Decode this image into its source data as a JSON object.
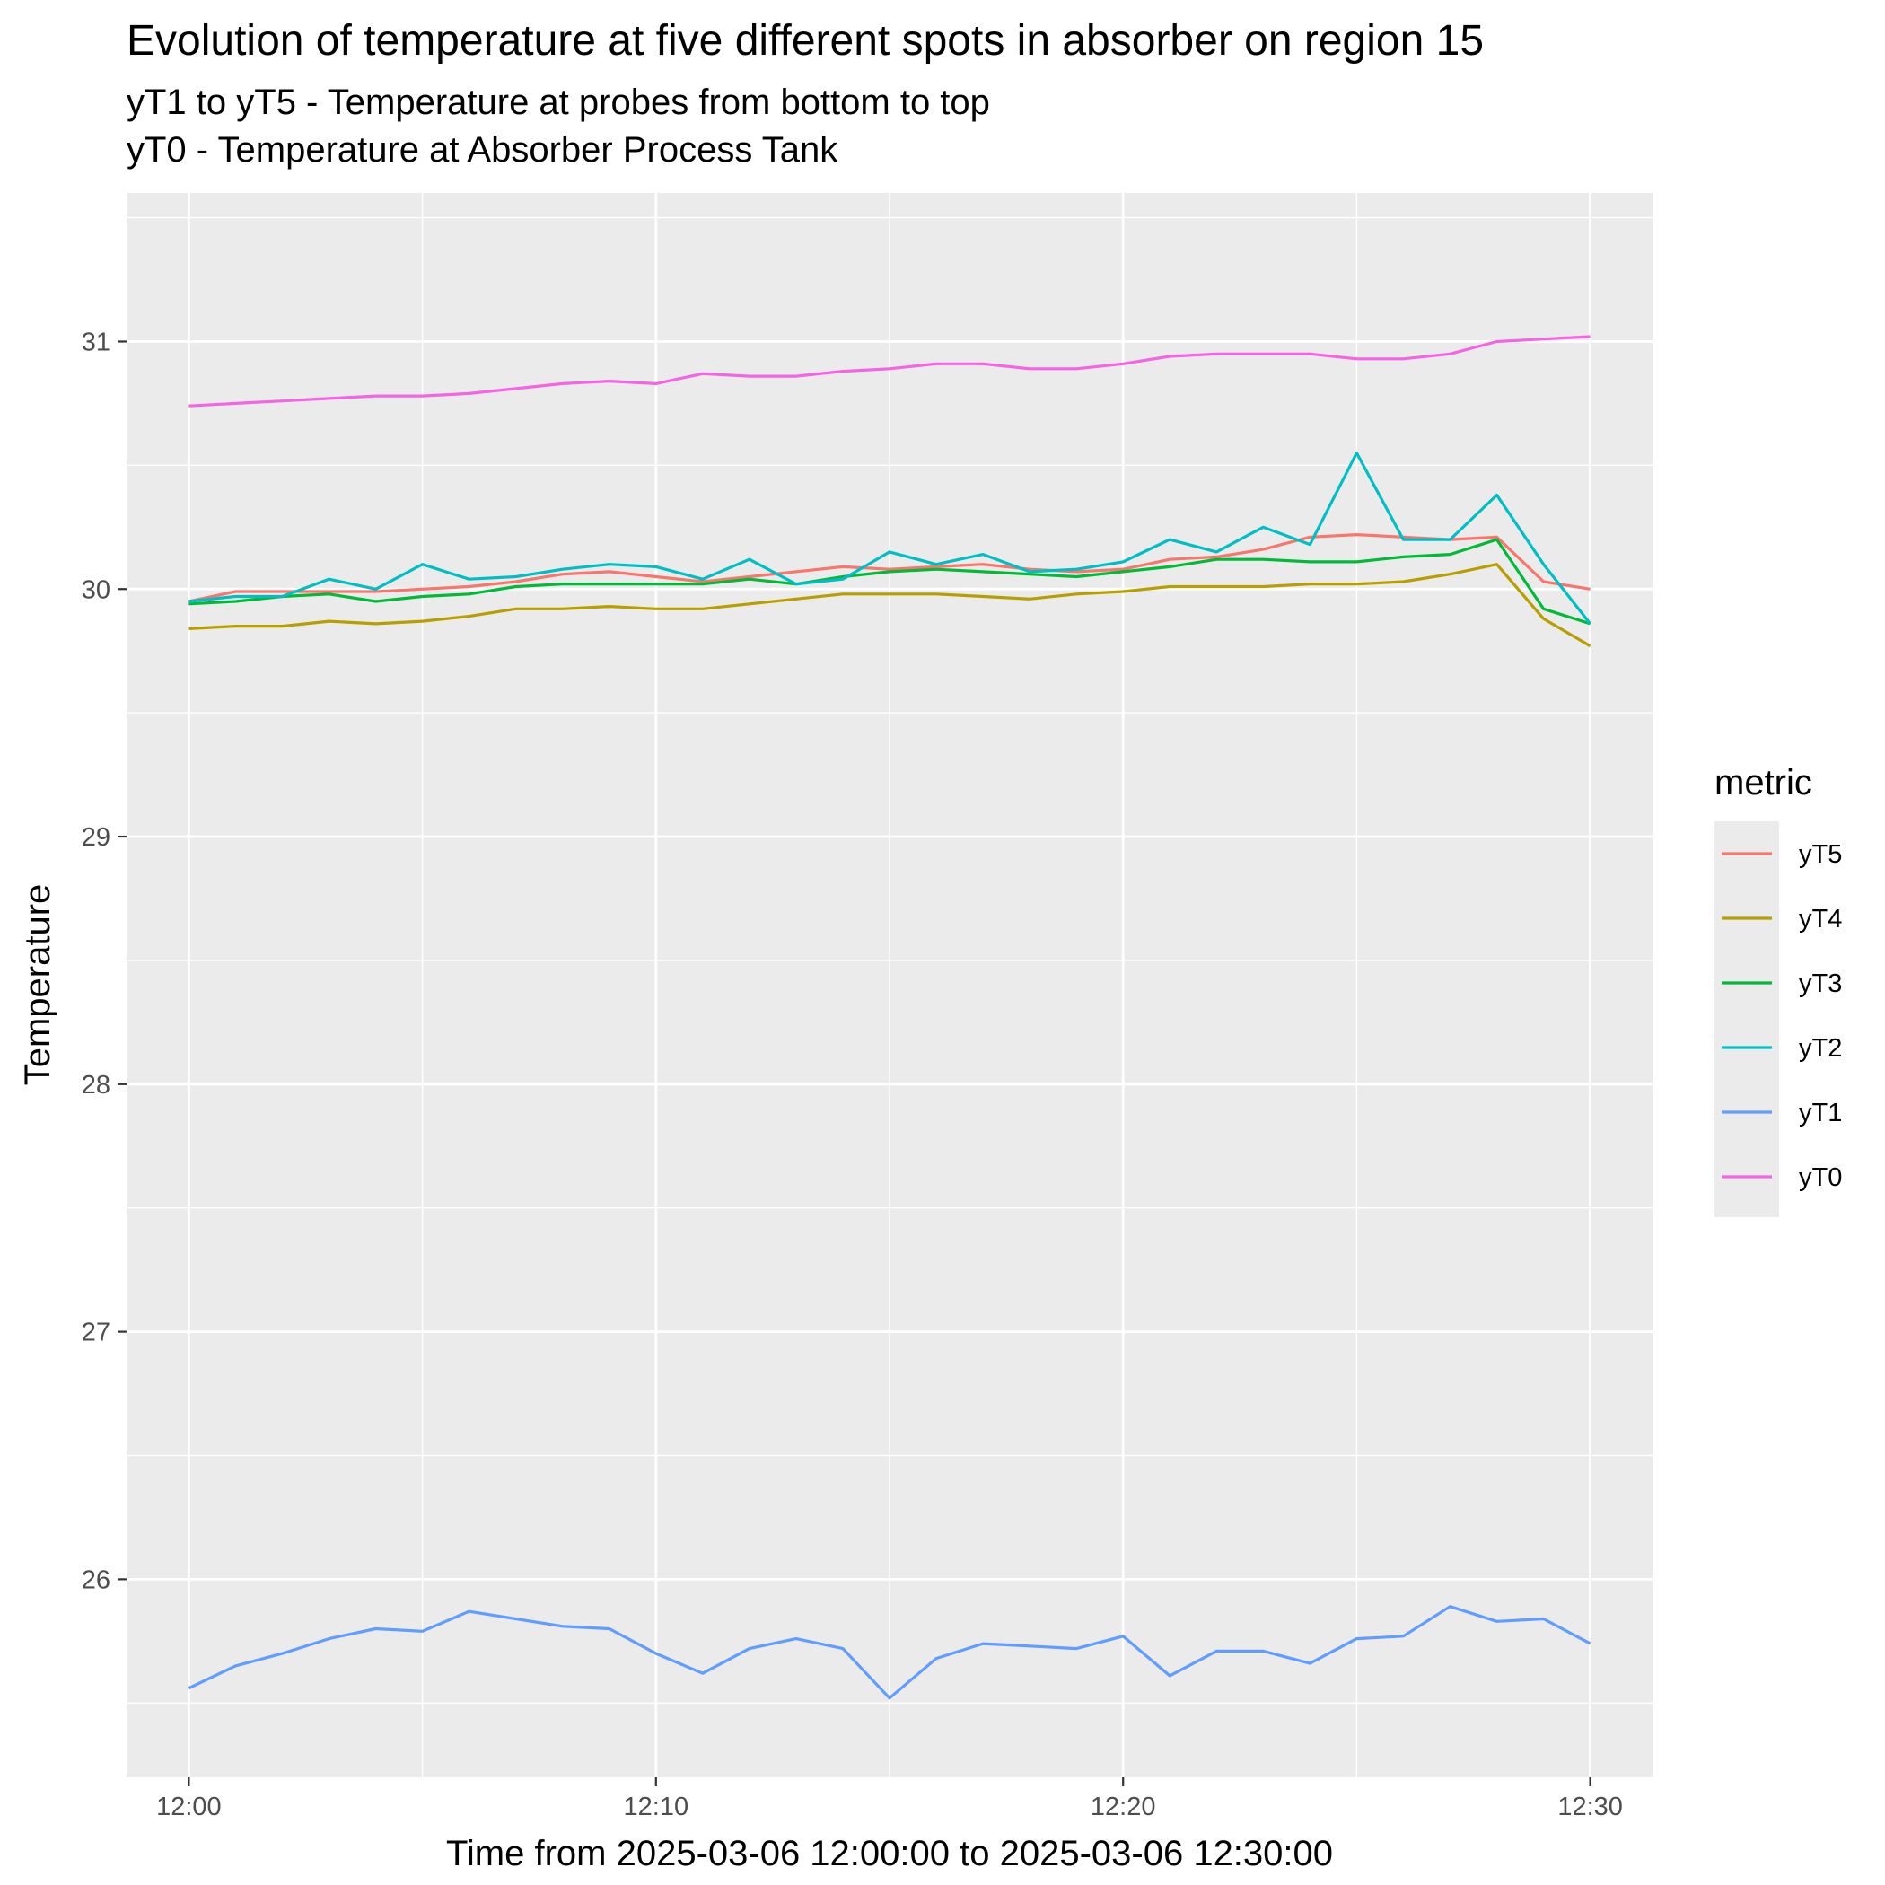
{
  "chart_data": {
    "type": "line",
    "title": "Evolution of temperature at five different spots in absorber on region 15",
    "subtitle_lines": [
      "yT1 to yT5 - Temperature at probes from bottom to top",
      "yT0 - Temperature at Absorber Process Tank"
    ],
    "xlabel": "Time from 2025-03-06 12:00:00 to 2025-03-06 12:30:00",
    "ylabel": "Temperature",
    "x_unit": "time (HH:MM)",
    "xlim": [
      "11:58:40",
      "12:31:20"
    ],
    "ylim": [
      25.2,
      31.6
    ],
    "x_ticks": [
      "12:00",
      "12:10",
      "12:20",
      "12:30"
    ],
    "y_ticks": [
      26,
      27,
      28,
      29,
      30,
      31
    ],
    "grid": true,
    "legend": {
      "title": "metric",
      "position": "right"
    },
    "x": [
      "12:00",
      "12:01",
      "12:02",
      "12:03",
      "12:04",
      "12:05",
      "12:06",
      "12:07",
      "12:08",
      "12:09",
      "12:10",
      "12:11",
      "12:12",
      "12:13",
      "12:14",
      "12:15",
      "12:16",
      "12:17",
      "12:18",
      "12:19",
      "12:20",
      "12:21",
      "12:22",
      "12:23",
      "12:24",
      "12:25",
      "12:26",
      "12:27",
      "12:28",
      "12:29",
      "12:30"
    ],
    "series": [
      {
        "name": "yT5",
        "color": "#F8766D",
        "values": [
          29.95,
          29.99,
          29.99,
          29.99,
          29.99,
          30.0,
          30.01,
          30.03,
          30.06,
          30.07,
          30.05,
          30.03,
          30.05,
          30.07,
          30.09,
          30.08,
          30.09,
          30.1,
          30.08,
          30.07,
          30.08,
          30.12,
          30.13,
          30.16,
          30.21,
          30.22,
          30.21,
          30.2,
          30.21,
          30.03,
          30.0
        ]
      },
      {
        "name": "yT4",
        "color": "#B79F00",
        "values": [
          29.84,
          29.85,
          29.85,
          29.87,
          29.86,
          29.87,
          29.89,
          29.92,
          29.92,
          29.93,
          29.92,
          29.92,
          29.94,
          29.96,
          29.98,
          29.98,
          29.98,
          29.97,
          29.96,
          29.98,
          29.99,
          30.01,
          30.01,
          30.01,
          30.02,
          30.02,
          30.03,
          30.06,
          30.1,
          29.88,
          29.77
        ]
      },
      {
        "name": "yT3",
        "color": "#00BA38",
        "values": [
          29.94,
          29.95,
          29.97,
          29.98,
          29.95,
          29.97,
          29.98,
          30.01,
          30.02,
          30.02,
          30.02,
          30.02,
          30.04,
          30.02,
          30.05,
          30.07,
          30.08,
          30.07,
          30.06,
          30.05,
          30.07,
          30.09,
          30.12,
          30.12,
          30.11,
          30.11,
          30.13,
          30.14,
          30.2,
          29.92,
          29.86
        ]
      },
      {
        "name": "yT2",
        "color": "#00BFC4",
        "values": [
          29.95,
          29.97,
          29.97,
          30.04,
          30.0,
          30.1,
          30.04,
          30.05,
          30.08,
          30.1,
          30.09,
          30.04,
          30.12,
          30.02,
          30.04,
          30.15,
          30.1,
          30.14,
          30.07,
          30.08,
          30.11,
          30.2,
          30.15,
          30.25,
          30.18,
          30.55,
          30.2,
          30.2,
          30.38,
          30.1,
          29.86
        ]
      },
      {
        "name": "yT1",
        "color": "#619CFF",
        "values": [
          25.56,
          25.65,
          25.7,
          25.76,
          25.8,
          25.79,
          25.87,
          25.84,
          25.81,
          25.8,
          25.7,
          25.62,
          25.72,
          25.76,
          25.72,
          25.52,
          25.68,
          25.74,
          25.73,
          25.72,
          25.77,
          25.61,
          25.71,
          25.71,
          25.66,
          25.76,
          25.77,
          25.89,
          25.83,
          25.84,
          25.74
        ]
      },
      {
        "name": "yT0",
        "color": "#F564E3",
        "values": [
          30.74,
          30.75,
          30.76,
          30.77,
          30.78,
          30.78,
          30.79,
          30.81,
          30.83,
          30.84,
          30.83,
          30.87,
          30.86,
          30.86,
          30.88,
          30.89,
          30.91,
          30.91,
          30.89,
          30.89,
          30.91,
          30.94,
          30.95,
          30.95,
          30.95,
          30.93,
          30.93,
          30.95,
          31.0,
          31.01,
          31.02
        ]
      }
    ]
  }
}
